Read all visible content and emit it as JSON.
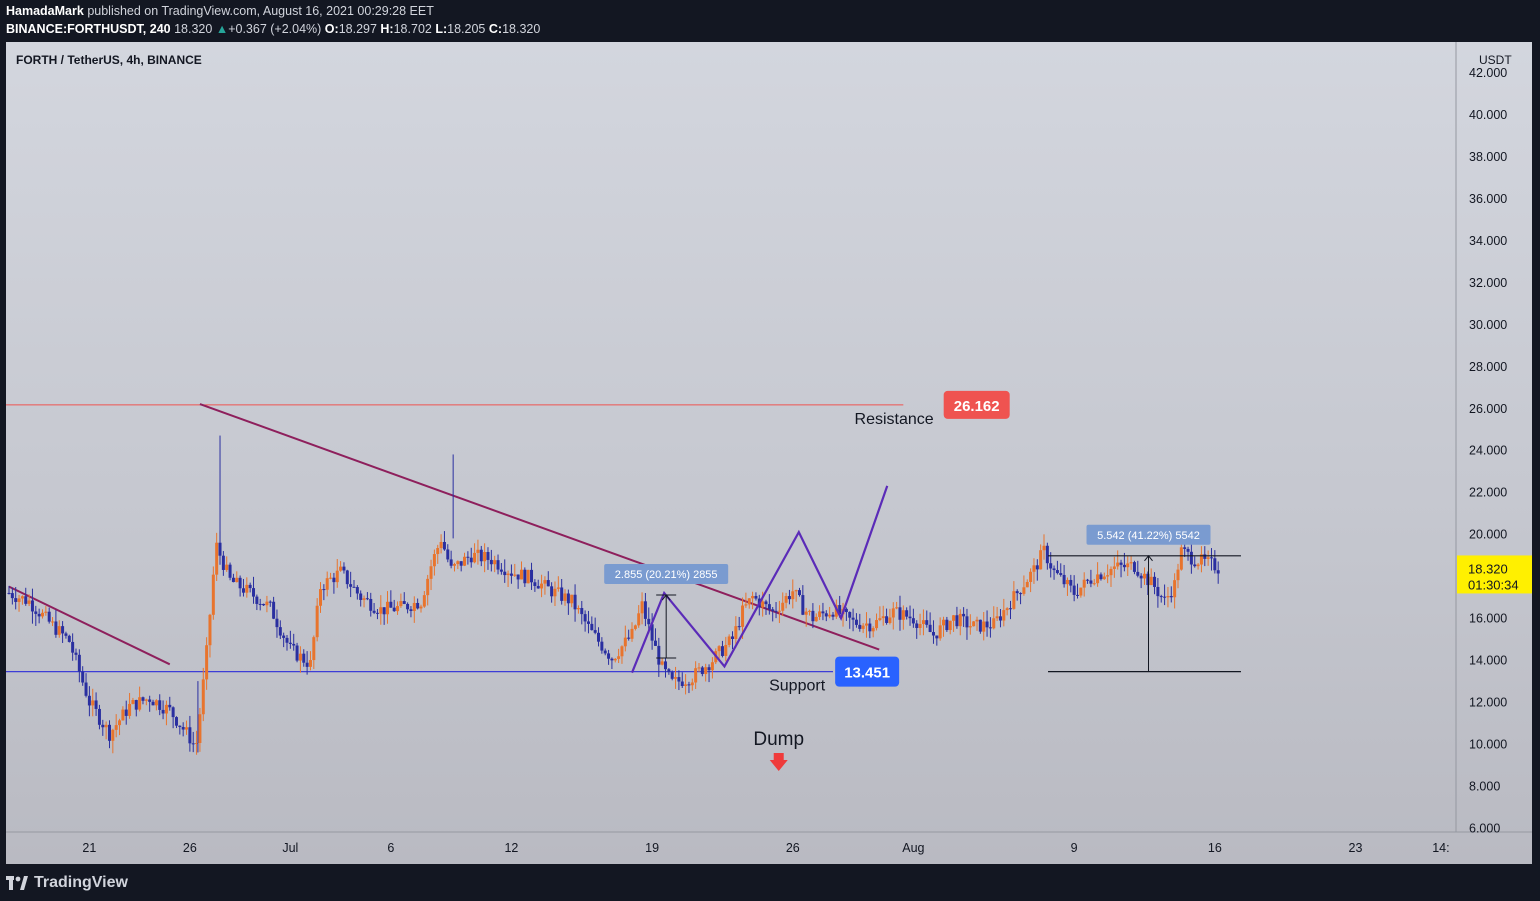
{
  "header": {
    "author": "HamadaMark",
    "published": "published on TradingView.com, August 16, 2021 00:29:28 EET",
    "symbol": "BINANCE:FORTHUSDT, 240",
    "last": "18.320",
    "change": "+0.367 (+2.04%)",
    "o_label": "O:",
    "o": "18.297",
    "h_label": "H:",
    "h": "18.702",
    "l_label": "L:",
    "l": "18.205",
    "c_label": "C:",
    "c": "18.320"
  },
  "footer": {
    "brand": "TradingView"
  },
  "colors": {
    "up": "#e8742d",
    "down": "#2a2fa0",
    "resistance": "#ef5350",
    "support": "#3d3dd6",
    "trend": "#8e1f5c",
    "zigzag": "#5b2bb8",
    "price_badge": "#fff000",
    "support_badge": "#2962ff",
    "measure_label": "#7a9bd0"
  },
  "chart_data": {
    "type": "candlestick",
    "title": "FORTH / TetherUS, 4h, BINANCE",
    "currency": "USDT",
    "ylim": [
      6,
      42.5
    ],
    "y_ticks": [
      "6.000",
      "8.000",
      "10.000",
      "12.000",
      "14.000",
      "16.000",
      "18.000",
      "20.000",
      "22.000",
      "24.000",
      "26.000",
      "28.000",
      "30.000",
      "32.000",
      "34.000",
      "36.000",
      "38.000",
      "40.000",
      "42.000"
    ],
    "y_tick_values": [
      6,
      8,
      10,
      12,
      14,
      16,
      18,
      20,
      22,
      24,
      26,
      28,
      30,
      32,
      34,
      36,
      38,
      40,
      42
    ],
    "x_tick_labels": [
      "21",
      "26",
      "Jul",
      "6",
      "12",
      "19",
      "26",
      "Aug",
      "9",
      "16",
      "23",
      "14:"
    ],
    "x_tick_days": [
      4,
      9,
      14,
      19,
      25,
      32,
      39,
      45,
      53,
      60,
      67,
      71.25
    ],
    "x_range_days": [
      0,
      72
    ],
    "last_price": "18.320",
    "countdown": "01:30:34",
    "price_path": [
      [
        0,
        17.2
      ],
      [
        1,
        16.8
      ],
      [
        2,
        15.8
      ],
      [
        3,
        14.9
      ],
      [
        4,
        12.0
      ],
      [
        5,
        10.5
      ],
      [
        6,
        11.8
      ],
      [
        7,
        12.2
      ],
      [
        8,
        11.6
      ],
      [
        9,
        10.3
      ],
      [
        9.3,
        9.8
      ],
      [
        9.8,
        14.0
      ],
      [
        10.3,
        19.5
      ],
      [
        11,
        17.8
      ],
      [
        12,
        17.2
      ],
      [
        13,
        16.5
      ],
      [
        14,
        14.5
      ],
      [
        15,
        13.8
      ],
      [
        15.5,
        17.5
      ],
      [
        16.5,
        18.2
      ],
      [
        17.5,
        17.0
      ],
      [
        18.5,
        16.4
      ],
      [
        19.5,
        16.5
      ],
      [
        20.5,
        16.8
      ],
      [
        21,
        18.5
      ],
      [
        21.5,
        19.8
      ],
      [
        22,
        18.3
      ],
      [
        23,
        19.0
      ],
      [
        24,
        18.8
      ],
      [
        25,
        18.2
      ],
      [
        26,
        17.9
      ],
      [
        27,
        17.3
      ],
      [
        28,
        16.8
      ],
      [
        29,
        15.3
      ],
      [
        30,
        14.1
      ],
      [
        31,
        15.2
      ],
      [
        31.5,
        16.6
      ],
      [
        32,
        15.0
      ],
      [
        32.5,
        13.6
      ],
      [
        33,
        12.9
      ],
      [
        34,
        13.2
      ],
      [
        35,
        14.0
      ],
      [
        36,
        15.0
      ],
      [
        36.5,
        16.3
      ],
      [
        37,
        17.0
      ],
      [
        38,
        16.3
      ],
      [
        39,
        17.3
      ],
      [
        39.5,
        16.5
      ],
      [
        40,
        16.0
      ],
      [
        41,
        16.4
      ],
      [
        42,
        15.8
      ],
      [
        43,
        15.7
      ],
      [
        44,
        16.3
      ],
      [
        45,
        16.0
      ],
      [
        46,
        15.2
      ],
      [
        47,
        16.0
      ],
      [
        48,
        15.6
      ],
      [
        49,
        15.7
      ],
      [
        50,
        17.0
      ],
      [
        51,
        18.3
      ],
      [
        51.5,
        19.2
      ],
      [
        52,
        18.2
      ],
      [
        53,
        17.2
      ],
      [
        54,
        18.0
      ],
      [
        55,
        18.4
      ],
      [
        56,
        18.5
      ],
      [
        57,
        17.5
      ],
      [
        57.5,
        16.8
      ],
      [
        58,
        17.6
      ],
      [
        58.3,
        19.2
      ],
      [
        59,
        18.8
      ],
      [
        60,
        18.5
      ],
      [
        60.3,
        18.32
      ]
    ],
    "levels": [
      {
        "name": "Resistance",
        "value": 26.162,
        "label": "26.162",
        "text": "Resistance"
      },
      {
        "name": "Support",
        "value": 13.451,
        "label": "13.451",
        "text": "Support"
      }
    ],
    "trendlines": [
      {
        "from": [
          0,
          17.5
        ],
        "to": [
          8,
          13.8
        ]
      },
      {
        "from": [
          9.5,
          26.2
        ],
        "to": [
          43.3,
          14.5
        ]
      }
    ],
    "zigzag": [
      [
        31,
        13.4
      ],
      [
        32.6,
        17.2
      ],
      [
        35.6,
        13.7
      ],
      [
        39.3,
        20.1
      ],
      [
        41.4,
        16.0
      ],
      [
        43.7,
        22.3
      ]
    ],
    "measurements": [
      {
        "label": "2.855 (20.21%) 2855",
        "x": 32.7,
        "from": 14.1,
        "to": 17.1
      },
      {
        "label": "5.542 (41.22%) 5542",
        "x": 56.7,
        "from": 13.45,
        "to": 18.97,
        "span": [
          51.7,
          61.3
        ]
      }
    ],
    "annotations": [
      {
        "text": "Dump",
        "x": 38.3,
        "y": 9.0,
        "arrow": "down"
      }
    ]
  }
}
